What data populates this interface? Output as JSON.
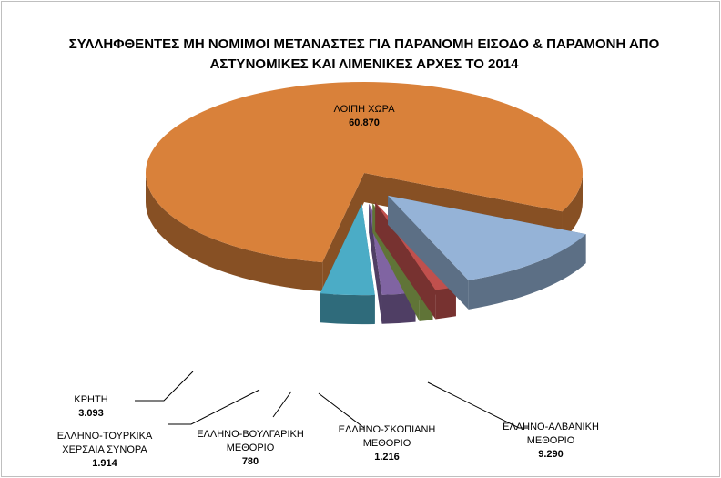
{
  "chart_data": {
    "type": "pie",
    "title": "ΣΥΛΛΗΦΘΕΝΤΕΣ ΜΗ ΝΟΜΙΜΟΙ ΜΕΤΑΝΑΣΤΕΣ ΓΙΑ ΠΑΡΑΝΟΜΗ ΕΙΣΟΔΟ & ΠΑΡΑΜΟΝΗ ΑΠΟ ΑΣΤΥΝΟΜΙΚΕΣ ΚΑΙ ΛΙΜΕΝΙΚΕΣ ΑΡΧΕΣ ΤΟ 2014",
    "categories": [
      "ΕΛΛΗΝΟ-ΑΛΒΑΝΙΚΗ ΜΕΘΟΡΙΟ",
      "ΕΛΛΗΝΟ-ΣΚΟΠΙΑΝΗ ΜΕΘΟΡΙΟ",
      "ΕΛΛΗΝΟ-ΒΟΥΛΓΑΡΙΚΗ ΜΕΘΟΡΙΟ",
      "ΕΛΛΗΝΟ-ΤΟΥΡΚΙΚΑ ΧΕΡΣΑΙΑ ΣΥΝΟΡΑ",
      "ΚΡΗΤΗ",
      "ΛΟΙΠΗ ΧΩΡΑ"
    ],
    "values": [
      9290,
      1216,
      780,
      1914,
      3093,
      60870
    ],
    "value_labels": [
      "9.290",
      "1.216",
      "780",
      "1.914",
      "3.093",
      "60.870"
    ],
    "colors": [
      "#95b3d7",
      "#c0504d",
      "#9bbb59",
      "#8064a2",
      "#4bacc6",
      "#d9813a"
    ]
  }
}
